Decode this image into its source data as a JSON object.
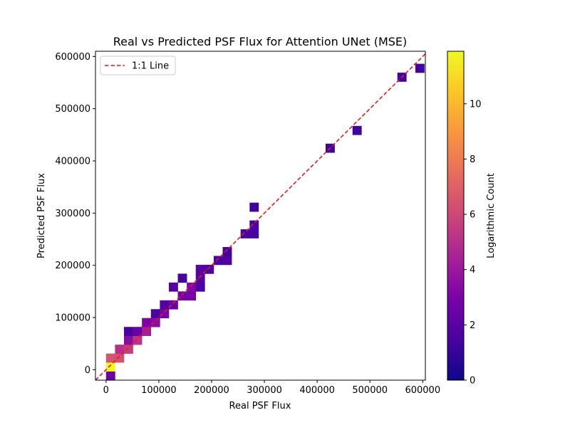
{
  "chart_data": {
    "type": "heatmap",
    "title": "Real vs Predicted PSF Flux for Attention UNet (MSE)",
    "xlabel": "Real PSF Flux",
    "ylabel": "Predicted PSF Flux",
    "xlim": [
      -20000,
      605000
    ],
    "ylim": [
      -20000,
      610000
    ],
    "xticks": [
      0,
      100000,
      200000,
      300000,
      400000,
      500000,
      600000
    ],
    "xtick_labels": [
      "0",
      "100000",
      "200000",
      "300000",
      "400000",
      "500000",
      "600000"
    ],
    "yticks": [
      0,
      100000,
      200000,
      300000,
      400000,
      500000,
      600000
    ],
    "ytick_labels": [
      "0",
      "100000",
      "200000",
      "300000",
      "400000",
      "500000",
      "600000"
    ],
    "grid": false,
    "legend": {
      "position": "top-left",
      "entries": [
        "1:1 Line"
      ]
    },
    "reference_line": {
      "label": "1:1 Line",
      "from": [
        -20000,
        -20000
      ],
      "to": [
        605000,
        605000
      ],
      "color": "#e41a1c",
      "style": "dashed"
    },
    "bin_width": 17000,
    "colormap": "plasma",
    "colorbar": {
      "label": "Logarithmic Count",
      "min": 0,
      "max": 11.9,
      "ticks": [
        0,
        2,
        4,
        6,
        8,
        10
      ],
      "tick_labels": [
        "0",
        "2",
        "4",
        "6",
        "8",
        "10"
      ]
    },
    "bins": [
      {
        "x": 8500,
        "y": -11500,
        "value": 2.5
      },
      {
        "x": 8500,
        "y": 5500,
        "value": 11.9
      },
      {
        "x": 8500,
        "y": 22500,
        "value": 6.5
      },
      {
        "x": 25500,
        "y": 22500,
        "value": 6.3
      },
      {
        "x": 25500,
        "y": 39500,
        "value": 5.0
      },
      {
        "x": 42500,
        "y": 39500,
        "value": 5.6
      },
      {
        "x": 42500,
        "y": 56500,
        "value": 3.5
      },
      {
        "x": 59500,
        "y": 56500,
        "value": 5.2
      },
      {
        "x": 42500,
        "y": 73500,
        "value": 1.6
      },
      {
        "x": 59500,
        "y": 73500,
        "value": 2.4
      },
      {
        "x": 76500,
        "y": 73500,
        "value": 4.3
      },
      {
        "x": 76500,
        "y": 90500,
        "value": 3.0
      },
      {
        "x": 93500,
        "y": 90500,
        "value": 3.5
      },
      {
        "x": 93500,
        "y": 107500,
        "value": 1.6
      },
      {
        "x": 110500,
        "y": 107500,
        "value": 2.8
      },
      {
        "x": 110500,
        "y": 124500,
        "value": 1.8
      },
      {
        "x": 127500,
        "y": 124500,
        "value": 2.5
      },
      {
        "x": 127500,
        "y": 158500,
        "value": 1.8
      },
      {
        "x": 144500,
        "y": 141500,
        "value": 2.6
      },
      {
        "x": 161500,
        "y": 141500,
        "value": 2.8
      },
      {
        "x": 161500,
        "y": 158500,
        "value": 3.2
      },
      {
        "x": 144500,
        "y": 175500,
        "value": 1.4
      },
      {
        "x": 178500,
        "y": 158500,
        "value": 1.6
      },
      {
        "x": 178500,
        "y": 175500,
        "value": 1.9
      },
      {
        "x": 178500,
        "y": 192500,
        "value": 2.0
      },
      {
        "x": 195500,
        "y": 192500,
        "value": 1.6
      },
      {
        "x": 212500,
        "y": 209500,
        "value": 1.5
      },
      {
        "x": 229500,
        "y": 209500,
        "value": 1.7
      },
      {
        "x": 229500,
        "y": 226500,
        "value": 1.3
      },
      {
        "x": 263500,
        "y": 260500,
        "value": 1.4
      },
      {
        "x": 280500,
        "y": 260500,
        "value": 1.4
      },
      {
        "x": 280500,
        "y": 277500,
        "value": 1.6
      },
      {
        "x": 280500,
        "y": 311500,
        "value": 1.2
      },
      {
        "x": 424500,
        "y": 424500,
        "value": 1.2
      },
      {
        "x": 475500,
        "y": 458500,
        "value": 1.3
      },
      {
        "x": 560500,
        "y": 560500,
        "value": 1.4
      },
      {
        "x": 594500,
        "y": 577500,
        "value": 1.3
      }
    ]
  }
}
